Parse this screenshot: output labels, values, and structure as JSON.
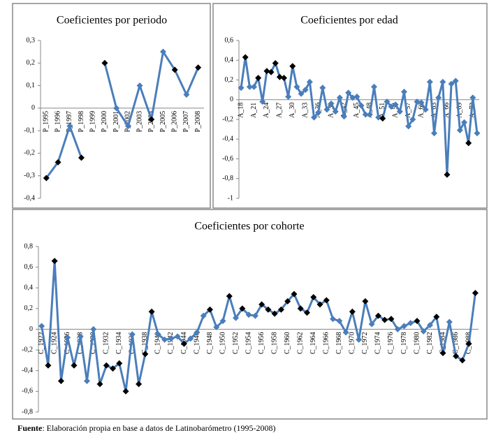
{
  "chart_data": [
    {
      "type": "line",
      "title": "Coeficientes por periodo",
      "categories": [
        "P_1995",
        "P_1996",
        "P_1997",
        "P_1998",
        "P_1999",
        "P_2000",
        "P_2001",
        "P_2002",
        "P_2003",
        "P_2004",
        "P_2005",
        "P_2006",
        "P_2007",
        "P_2008"
      ],
      "series": [
        {
          "color": "#4a7ebb",
          "values": [
            -0.31,
            -0.24,
            -0.08,
            -0.22,
            null,
            0.2,
            0.0,
            -0.08,
            0.1,
            -0.05,
            0.25,
            0.17,
            0.06,
            0.18
          ],
          "marker_colors": [
            "#000000",
            "#000000",
            "#4a7ebb",
            "#000000",
            null,
            "#000000",
            "#4a7ebb",
            "#4a7ebb",
            "#4a7ebb",
            "#000000",
            "#4a7ebb",
            "#000000",
            "#4a7ebb",
            "#000000"
          ]
        }
      ],
      "ylim": [
        -0.4,
        0.3
      ],
      "yticks": [
        {
          "value": -0.4,
          "label": "-0,4"
        },
        {
          "value": -0.3,
          "label": "-0,3"
        },
        {
          "value": -0.2,
          "label": "-0,2"
        },
        {
          "value": -0.1,
          "label": "-0,1"
        },
        0,
        {
          "value": 0.1,
          "label": "0,1"
        },
        {
          "value": 0.2,
          "label": "0,2"
        },
        {
          "value": 0.3,
          "label": "0,3"
        }
      ]
    },
    {
      "type": "line",
      "title": "Coeficientes por edad",
      "categories": [
        "A_18",
        null,
        null,
        "A_21",
        null,
        null,
        "A_24",
        null,
        null,
        "A_27",
        null,
        null,
        "A_30",
        null,
        null,
        "A_33",
        null,
        null,
        "A_36",
        null,
        null,
        "A_39",
        null,
        null,
        "A_42",
        null,
        null,
        "A_45",
        null,
        null,
        "A_48",
        null,
        null,
        "A_51",
        null,
        null,
        "A_54",
        null,
        null,
        "A_57",
        null,
        null,
        "A_60",
        null,
        null,
        "A_63",
        null,
        null,
        "A_66",
        null,
        null,
        "A_69",
        null,
        null,
        "A_72",
        null
      ],
      "series": [
        {
          "color": "#4a7ebb",
          "values": [
            0.12,
            0.43,
            0.13,
            0.13,
            0.22,
            -0.02,
            0.29,
            0.28,
            0.37,
            0.23,
            0.22,
            0.03,
            0.34,
            0.13,
            0.06,
            0.1,
            0.18,
            -0.18,
            -0.13,
            0.12,
            -0.1,
            -0.04,
            -0.12,
            0.02,
            -0.17,
            0.07,
            0.02,
            0.03,
            -0.06,
            -0.15,
            -0.15,
            0.13,
            -0.18,
            -0.19,
            -0.02,
            -0.07,
            -0.05,
            -0.12,
            0.08,
            -0.27,
            -0.2,
            -0.02,
            -0.03,
            -0.1,
            0.18,
            -0.34,
            0.02,
            0.18,
            -0.76,
            0.16,
            0.19,
            -0.31,
            -0.23,
            -0.44,
            0.02,
            -0.34
          ],
          "marker_colors": [
            "#4a7ebb",
            "#000000",
            "#4a7ebb",
            "#4a7ebb",
            "#000000",
            "#4a7ebb",
            "#000000",
            "#000000",
            "#000000",
            "#000000",
            "#000000",
            "#4a7ebb",
            "#000000",
            "#4a7ebb",
            "#4a7ebb",
            "#4a7ebb",
            "#4a7ebb",
            "#4a7ebb",
            "#4a7ebb",
            "#4a7ebb",
            "#4a7ebb",
            "#4a7ebb",
            "#4a7ebb",
            "#4a7ebb",
            "#4a7ebb",
            "#4a7ebb",
            "#4a7ebb",
            "#4a7ebb",
            "#4a7ebb",
            "#4a7ebb",
            "#4a7ebb",
            "#4a7ebb",
            "#4a7ebb",
            "#000000",
            "#4a7ebb",
            "#4a7ebb",
            "#4a7ebb",
            "#4a7ebb",
            "#4a7ebb",
            "#4a7ebb",
            "#4a7ebb",
            "#4a7ebb",
            "#4a7ebb",
            "#4a7ebb",
            "#4a7ebb",
            "#4a7ebb",
            "#4a7ebb",
            "#4a7ebb",
            "#000000",
            "#4a7ebb",
            "#4a7ebb",
            "#4a7ebb",
            "#4a7ebb",
            "#000000",
            "#4a7ebb",
            "#4a7ebb"
          ]
        }
      ],
      "ylim": [
        -1,
        0.6
      ],
      "yticks": [
        -1,
        {
          "value": -0.8,
          "label": "-0,8"
        },
        {
          "value": -0.6,
          "label": "-0,6"
        },
        {
          "value": -0.4,
          "label": "-0,4"
        },
        {
          "value": -0.2,
          "label": "-0,2"
        },
        0,
        {
          "value": 0.2,
          "label": "0,2"
        },
        {
          "value": 0.4,
          "label": "0,4"
        },
        {
          "value": 0.6,
          "label": "0,6"
        }
      ]
    },
    {
      "type": "line",
      "title": "Coeficientes por cohorte",
      "categories": [
        "C_1922",
        null,
        "C_1924",
        null,
        "C_1926",
        null,
        "C_1928",
        null,
        "C_1930",
        null,
        "C_1932",
        null,
        "C_1934",
        null,
        "C_1936",
        null,
        "C_1938",
        null,
        "C_1940",
        null,
        "C_1942",
        null,
        "C_1944",
        null,
        "C_1946",
        null,
        "C_1948",
        null,
        "C_1950",
        null,
        "C_1952",
        null,
        "C_1954",
        null,
        "C_1956",
        null,
        "C_1958",
        null,
        "C_1960",
        null,
        "C_1962",
        null,
        "C_1964",
        null,
        "C_1966",
        null,
        "C_1968",
        null,
        "C_1970",
        null,
        "C_1972",
        null,
        "C_1974",
        null,
        "C_1976",
        null,
        "C_1978",
        null,
        "C_1980",
        null,
        "C_1982",
        null,
        "C_1984",
        null,
        "C_1986",
        null,
        "C_1988",
        null
      ],
      "series": [
        {
          "color": "#4a7ebb",
          "values": [
            0.03,
            -0.35,
            0.66,
            -0.5,
            -0.08,
            -0.35,
            -0.07,
            -0.5,
            0.0,
            -0.53,
            -0.35,
            -0.38,
            -0.33,
            -0.6,
            -0.05,
            -0.53,
            -0.24,
            0.17,
            -0.05,
            -0.1,
            -0.09,
            -0.07,
            -0.14,
            -0.09,
            -0.03,
            0.13,
            0.19,
            0.02,
            0.08,
            0.32,
            0.11,
            0.2,
            0.14,
            0.13,
            0.24,
            0.19,
            0.15,
            0.19,
            0.27,
            0.34,
            0.2,
            0.16,
            0.31,
            0.24,
            0.28,
            0.1,
            0.08,
            -0.03,
            0.17,
            -0.1,
            0.27,
            0.05,
            0.13,
            0.09,
            0.1,
            0.0,
            0.03,
            0.06,
            0.08,
            -0.02,
            0.04,
            0.12,
            -0.23,
            0.07,
            -0.26,
            -0.3,
            -0.14,
            0.35
          ],
          "marker_colors": [
            "#4a7ebb",
            "#000000",
            "#000000",
            "#000000",
            "#4a7ebb",
            "#000000",
            "#4a7ebb",
            "#4a7ebb",
            "#4a7ebb",
            "#000000",
            "#000000",
            "#000000",
            "#000000",
            "#000000",
            "#4a7ebb",
            "#000000",
            "#000000",
            "#000000",
            "#4a7ebb",
            "#4a7ebb",
            "#4a7ebb",
            "#4a7ebb",
            "#000000",
            "#4a7ebb",
            "#4a7ebb",
            "#4a7ebb",
            "#000000",
            "#4a7ebb",
            "#4a7ebb",
            "#000000",
            "#4a7ebb",
            "#000000",
            "#4a7ebb",
            "#4a7ebb",
            "#000000",
            "#000000",
            "#000000",
            "#000000",
            "#000000",
            "#000000",
            "#000000",
            "#000000",
            "#000000",
            "#000000",
            "#000000",
            "#4a7ebb",
            "#4a7ebb",
            "#4a7ebb",
            "#000000",
            "#4a7ebb",
            "#000000",
            "#4a7ebb",
            "#000000",
            "#000000",
            "#000000",
            "#4a7ebb",
            "#4a7ebb",
            "#4a7ebb",
            "#000000",
            "#4a7ebb",
            "#4a7ebb",
            "#000000",
            "#000000",
            "#4a7ebb",
            "#000000",
            "#000000",
            "#000000",
            "#000000"
          ]
        }
      ],
      "ylim": [
        -0.8,
        0.8
      ],
      "yticks": [
        {
          "value": -0.8,
          "label": "-0,8"
        },
        {
          "value": -0.6,
          "label": "-0,6"
        },
        {
          "value": -0.4,
          "label": "-0,4"
        },
        {
          "value": -0.2,
          "label": "-0,2"
        },
        0,
        {
          "value": 0.2,
          "label": "0,2"
        },
        {
          "value": 0.4,
          "label": "0,4"
        },
        {
          "value": 0.6,
          "label": "0,6"
        },
        {
          "value": 0.8,
          "label": "0,8"
        }
      ]
    }
  ],
  "source": {
    "label": "Fuente",
    "text": ": Elaboración propia en base a datos de Latinobarómetro (1995-2008)"
  }
}
